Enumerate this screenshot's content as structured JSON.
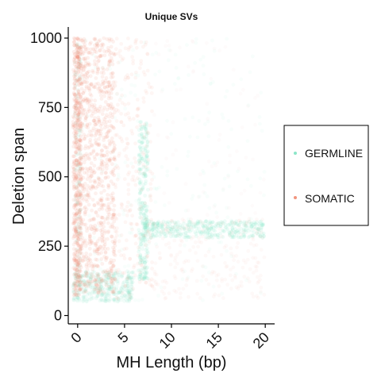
{
  "chart_data": {
    "type": "scatter",
    "title": "Unique SVs",
    "xlabel": "MH Length (bp)",
    "ylabel": "Deletion span",
    "xlim": [
      -1,
      21
    ],
    "ylim": [
      -30,
      1040
    ],
    "x_ticks": [
      0,
      5,
      10,
      15,
      20
    ],
    "x_tick_labels": [
      "0",
      "5",
      "10",
      "15",
      "20"
    ],
    "y_ticks": [
      0,
      250,
      500,
      750,
      1000
    ],
    "y_tick_labels": [
      "0",
      "250",
      "500",
      "750",
      "1000"
    ],
    "grid": false,
    "legend_position": "right",
    "series": [
      {
        "name": "GERMLINE",
        "color": "#7fe3c2",
        "regions": [
          {
            "x": [
              0,
              20
            ],
            "y": [
              50,
              1000
            ],
            "count": 200,
            "alpha": 0.05
          },
          {
            "x": [
              -0.5,
              6
            ],
            "y": [
              50,
              160
            ],
            "count": 380,
            "alpha": 0.1
          },
          {
            "x": [
              6.5,
              7.5
            ],
            "y": [
              130,
              700
            ],
            "count": 260,
            "alpha": 0.12
          },
          {
            "x": [
              7,
              20
            ],
            "y": [
              280,
              340
            ],
            "count": 360,
            "alpha": 0.12
          },
          {
            "x": [
              -0.3,
              0.3
            ],
            "y": [
              60,
              1000
            ],
            "count": 120,
            "alpha": 0.1
          }
        ]
      },
      {
        "name": "SOMATIC",
        "color": "#ef8a70",
        "regions": [
          {
            "x": [
              -0.5,
              4
            ],
            "y": [
              80,
              1000
            ],
            "count": 1000,
            "alpha": 0.12
          },
          {
            "x": [
              -0.4,
              0.4
            ],
            "y": [
              70,
              1000
            ],
            "count": 300,
            "alpha": 0.14
          },
          {
            "x": [
              4,
              8
            ],
            "y": [
              60,
              1000
            ],
            "count": 240,
            "alpha": 0.08
          },
          {
            "x": [
              8,
              20
            ],
            "y": [
              60,
              350
            ],
            "count": 220,
            "alpha": 0.05
          },
          {
            "x": [
              8,
              20
            ],
            "y": [
              350,
              1000
            ],
            "count": 70,
            "alpha": 0.03
          }
        ]
      }
    ]
  }
}
